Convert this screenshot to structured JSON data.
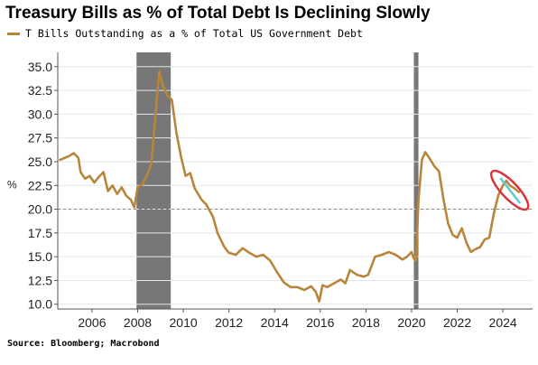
{
  "header": {
    "title": "Treasury Bills as % of Total Debt Is Declining Slowly",
    "source": "Source: Bloomberg; Macrobond"
  },
  "chart_data": {
    "type": "line",
    "title": "Treasury Bills as % of Total Debt Is Declining Slowly",
    "ylabel": "%",
    "xlabel": "",
    "ylim": [
      9.5,
      36.5
    ],
    "xlim": [
      2004.5,
      2025.3
    ],
    "yticks": [
      "10.0",
      "12.5",
      "15.0",
      "17.5",
      "20.0",
      "22.5",
      "25.0",
      "27.5",
      "30.0",
      "32.5",
      "35.0"
    ],
    "xticks": [
      "2006",
      "2008",
      "2010",
      "2012",
      "2014",
      "2016",
      "2018",
      "2020",
      "2022",
      "2024"
    ],
    "reference_line": {
      "y": 20.0,
      "style": "dashed"
    },
    "recessions": [
      {
        "start": 2007.95,
        "end": 2009.45
      },
      {
        "start": 2020.1,
        "end": 2020.3
      }
    ],
    "legend_position": "top-left",
    "grid": true,
    "annotation": "circled recent decline (2024)",
    "colors": {
      "series": "#b8863b",
      "recession": "#777777",
      "annotation_outer": "#d9343a",
      "annotation_inner": "#5fc6d4"
    },
    "series": [
      {
        "name": "T Bills Outstanding as a % of Total US Government Debt",
        "x": [
          2004.6,
          2004.8,
          2005.0,
          2005.2,
          2005.4,
          2005.5,
          2005.7,
          2005.9,
          2006.1,
          2006.3,
          2006.5,
          2006.7,
          2006.9,
          2007.1,
          2007.3,
          2007.5,
          2007.7,
          2007.85,
          2008.0,
          2008.2,
          2008.4,
          2008.6,
          2008.75,
          2008.85,
          2008.95,
          2009.1,
          2009.3,
          2009.5,
          2009.7,
          2009.9,
          2010.1,
          2010.3,
          2010.5,
          2010.8,
          2011.0,
          2011.3,
          2011.5,
          2011.8,
          2012.0,
          2012.3,
          2012.6,
          2012.9,
          2013.2,
          2013.5,
          2013.8,
          2014.1,
          2014.4,
          2014.7,
          2015.0,
          2015.3,
          2015.6,
          2015.8,
          2015.95,
          2016.1,
          2016.3,
          2016.6,
          2016.9,
          2017.1,
          2017.3,
          2017.6,
          2017.9,
          2018.1,
          2018.4,
          2018.7,
          2019.0,
          2019.3,
          2019.6,
          2019.8,
          2020.0,
          2020.1,
          2020.2,
          2020.3,
          2020.45,
          2020.6,
          2020.8,
          2021.0,
          2021.2,
          2021.4,
          2021.6,
          2021.8,
          2022.0,
          2022.2,
          2022.4,
          2022.6,
          2022.8,
          2023.0,
          2023.2,
          2023.4,
          2023.6,
          2023.8,
          2024.0,
          2024.15,
          2024.3,
          2024.5,
          2024.7
        ],
        "y": [
          25.2,
          25.4,
          25.6,
          25.9,
          25.4,
          23.9,
          23.2,
          23.5,
          22.8,
          23.4,
          23.9,
          21.9,
          22.5,
          21.6,
          22.3,
          21.4,
          21.0,
          20.2,
          22.3,
          22.6,
          23.5,
          24.8,
          29.0,
          32.0,
          34.5,
          33.0,
          32.0,
          31.5,
          28.0,
          25.5,
          23.5,
          23.8,
          22.2,
          21.0,
          20.5,
          19.2,
          17.5,
          16.0,
          15.4,
          15.2,
          15.9,
          15.4,
          15.0,
          15.2,
          14.6,
          13.4,
          12.3,
          11.8,
          11.8,
          11.5,
          11.9,
          11.3,
          10.3,
          12.0,
          11.8,
          12.2,
          12.6,
          12.2,
          13.6,
          13.1,
          12.9,
          13.1,
          15.0,
          15.2,
          15.5,
          15.2,
          14.7,
          15.0,
          15.5,
          14.8,
          14.6,
          21.0,
          25.2,
          26.0,
          25.3,
          24.5,
          24.0,
          21.0,
          18.5,
          17.3,
          17.0,
          18.0,
          16.5,
          15.5,
          15.8,
          16.0,
          16.8,
          17.0,
          19.5,
          21.5,
          22.5,
          23.0,
          22.5,
          22.2,
          21.8
        ]
      }
    ]
  }
}
